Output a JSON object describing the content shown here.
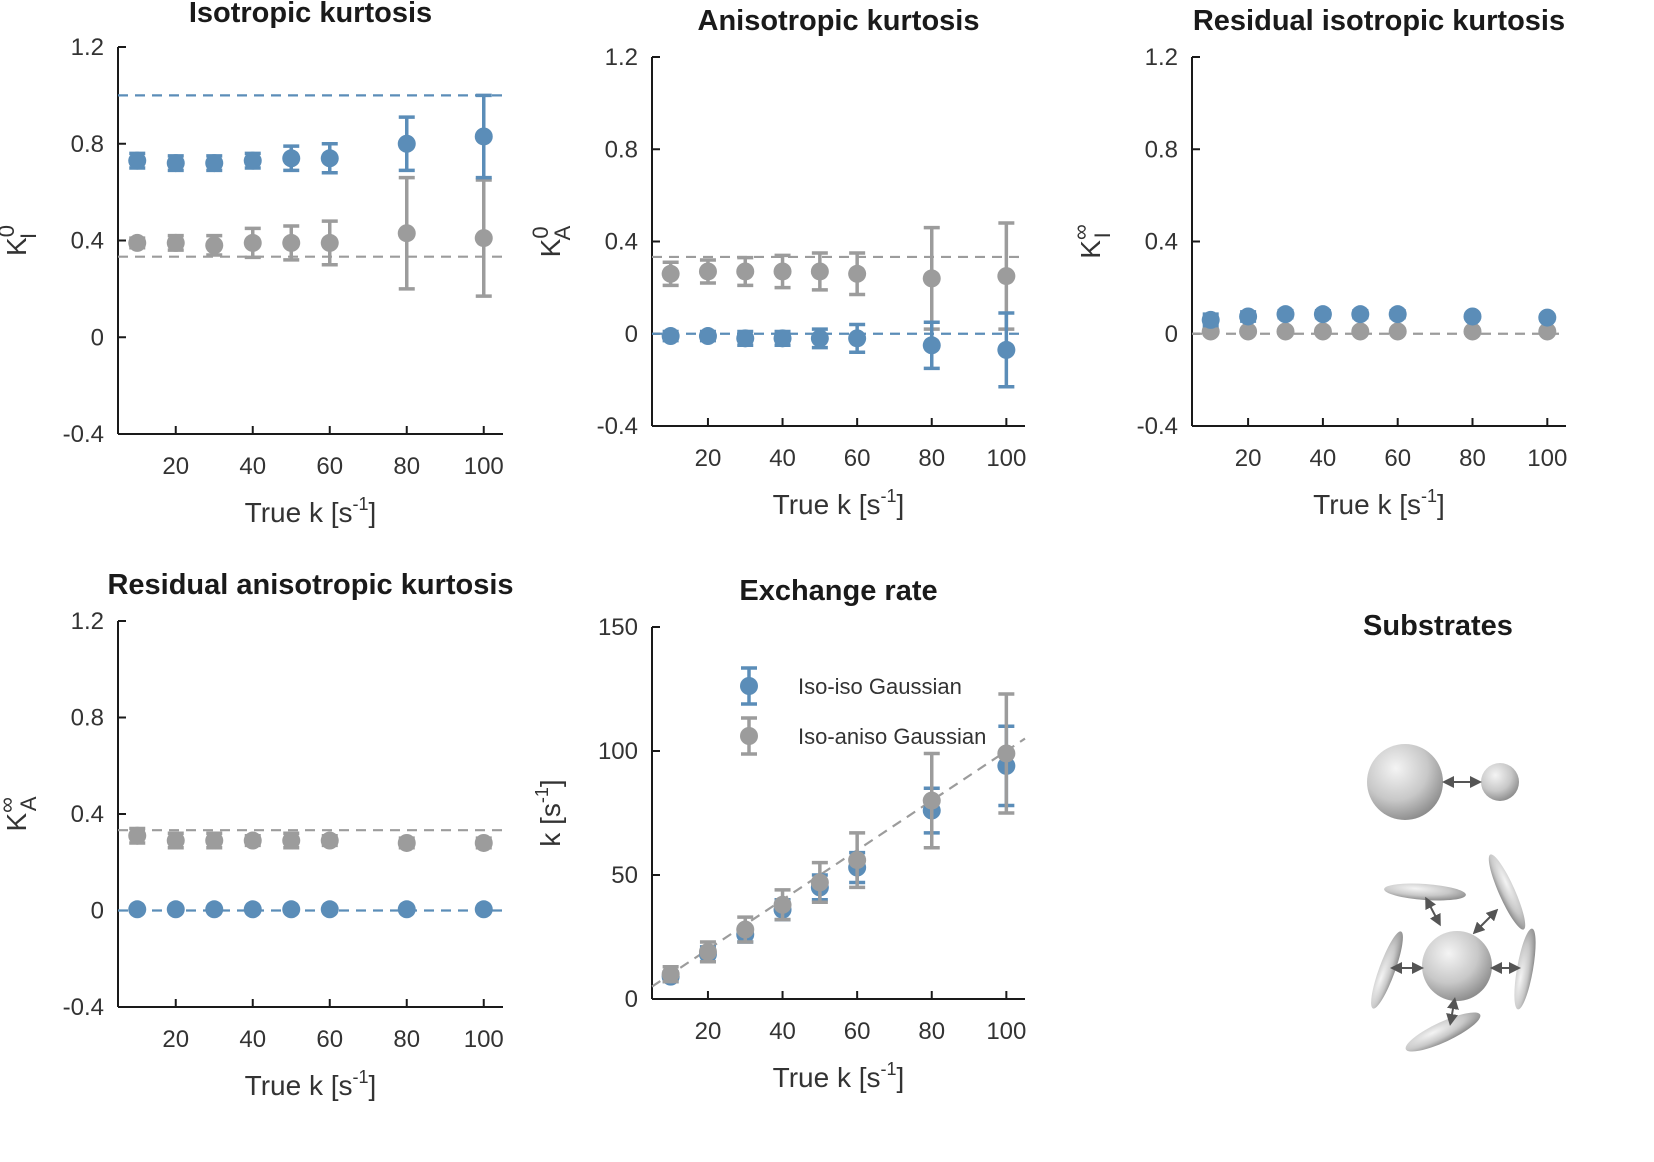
{
  "colors": {
    "blue": "#5b8db8",
    "gray": "#9c9c9c",
    "axis": "#1a1a1a",
    "text": "#333333",
    "ball_fill": "#c4c4c4",
    "ball_stroke": "#9a9a9a"
  },
  "chart_data": [
    {
      "id": "iso",
      "type": "scatter",
      "title": "Isotropic kurtosis",
      "xlabel": "True k [s",
      "xlabel_sup": "-1",
      "xlabel_tail": "]",
      "ylabel": "K",
      "ylabel_sup": "0",
      "ylabel_sub": "I",
      "ylim": [
        -0.4,
        1.2
      ],
      "xlim": [
        5,
        105
      ],
      "yticks": [
        "1.2",
        "0.8",
        "0.4",
        "0",
        "-0.4"
      ],
      "xticks": [
        "20",
        "40",
        "60",
        "80",
        "100"
      ],
      "references": [
        {
          "series": "Iso-iso Gaussian",
          "y": 1.0
        },
        {
          "series": "Iso-aniso Gaussian",
          "y": 0.333
        }
      ],
      "series": [
        {
          "name": "Iso-iso Gaussian",
          "x": [
            10,
            20,
            30,
            40,
            50,
            60,
            80,
            100
          ],
          "values": [
            0.73,
            0.72,
            0.72,
            0.73,
            0.74,
            0.74,
            0.8,
            0.83
          ],
          "err": [
            0.03,
            0.03,
            0.03,
            0.03,
            0.05,
            0.06,
            0.11,
            0.17
          ]
        },
        {
          "name": "Iso-aniso Gaussian",
          "x": [
            10,
            20,
            30,
            40,
            50,
            60,
            80,
            100
          ],
          "values": [
            0.39,
            0.39,
            0.38,
            0.39,
            0.39,
            0.39,
            0.43,
            0.41
          ],
          "err": [
            0.02,
            0.03,
            0.04,
            0.06,
            0.07,
            0.09,
            0.23,
            0.24
          ]
        }
      ]
    },
    {
      "id": "aniso",
      "type": "scatter",
      "title": "Anisotropic kurtosis",
      "xlabel": "True k [s",
      "xlabel_sup": "-1",
      "xlabel_tail": "]",
      "ylabel": "K",
      "ylabel_sup": "0",
      "ylabel_sub": "A",
      "ylim": [
        -0.4,
        1.2
      ],
      "xlim": [
        5,
        105
      ],
      "yticks": [
        "1.2",
        "0.8",
        "0.4",
        "0",
        "-0.4"
      ],
      "xticks": [
        "20",
        "40",
        "60",
        "80",
        "100"
      ],
      "references": [
        {
          "series": "Iso-iso Gaussian",
          "y": 0.0
        },
        {
          "series": "Iso-aniso Gaussian",
          "y": 0.333
        }
      ],
      "series": [
        {
          "name": "Iso-iso Gaussian",
          "x": [
            10,
            20,
            30,
            40,
            50,
            60,
            80,
            100
          ],
          "values": [
            -0.01,
            -0.01,
            -0.02,
            -0.02,
            -0.02,
            -0.02,
            -0.05,
            -0.07
          ],
          "err": [
            0.02,
            0.02,
            0.03,
            0.03,
            0.04,
            0.06,
            0.1,
            0.16
          ]
        },
        {
          "name": "Iso-aniso Gaussian",
          "x": [
            10,
            20,
            30,
            40,
            50,
            60,
            80,
            100
          ],
          "values": [
            0.26,
            0.27,
            0.27,
            0.27,
            0.27,
            0.26,
            0.24,
            0.25
          ],
          "err": [
            0.05,
            0.05,
            0.06,
            0.07,
            0.08,
            0.09,
            0.22,
            0.23
          ]
        }
      ]
    },
    {
      "id": "riso",
      "type": "scatter",
      "title": "Residual isotropic kurtosis",
      "xlabel": "True k [s",
      "xlabel_sup": "-1",
      "xlabel_tail": "]",
      "ylabel": "K",
      "ylabel_sup": "∞",
      "ylabel_sub": "I",
      "ylim": [
        -0.4,
        1.2
      ],
      "xlim": [
        5,
        105
      ],
      "yticks": [
        "1.2",
        "0.8",
        "0.4",
        "0",
        "-0.4"
      ],
      "xticks": [
        "20",
        "40",
        "60",
        "80",
        "100"
      ],
      "references": [
        {
          "series": "Iso-aniso Gaussian",
          "y": 0.0
        }
      ],
      "series": [
        {
          "name": "Iso-iso Gaussian",
          "x": [
            10,
            20,
            30,
            40,
            50,
            60,
            80,
            100
          ],
          "values": [
            0.06,
            0.075,
            0.085,
            0.085,
            0.085,
            0.085,
            0.075,
            0.07
          ],
          "err": [
            0.025,
            0.02,
            0.015,
            0.015,
            0.015,
            0.015,
            0.012,
            0.012
          ]
        },
        {
          "name": "Iso-aniso Gaussian",
          "x": [
            10,
            20,
            30,
            40,
            50,
            60,
            80,
            100
          ],
          "values": [
            0.01,
            0.01,
            0.01,
            0.01,
            0.01,
            0.01,
            0.01,
            0.01
          ],
          "err": [
            0.01,
            0.01,
            0.01,
            0.01,
            0.01,
            0.01,
            0.01,
            0.01
          ]
        }
      ]
    },
    {
      "id": "raniso",
      "type": "scatter",
      "title": "Residual anisotropic kurtosis",
      "xlabel": "True k [s",
      "xlabel_sup": "-1",
      "xlabel_tail": "]",
      "ylabel": "K",
      "ylabel_sup": "∞",
      "ylabel_sub": "A",
      "ylim": [
        -0.4,
        1.2
      ],
      "xlim": [
        5,
        105
      ],
      "yticks": [
        "1.2",
        "0.8",
        "0.4",
        "0",
        "-0.4"
      ],
      "xticks": [
        "20",
        "40",
        "60",
        "80",
        "100"
      ],
      "references": [
        {
          "series": "Iso-iso Gaussian",
          "y": 0.0
        },
        {
          "series": "Iso-aniso Gaussian",
          "y": 0.333
        }
      ],
      "series": [
        {
          "name": "Iso-iso Gaussian",
          "x": [
            10,
            20,
            30,
            40,
            50,
            60,
            80,
            100
          ],
          "values": [
            0.005,
            0.005,
            0.005,
            0.005,
            0.005,
            0.005,
            0.005,
            0.005
          ],
          "err": [
            0.005,
            0.005,
            0.005,
            0.005,
            0.005,
            0.005,
            0.005,
            0.005
          ]
        },
        {
          "name": "Iso-aniso Gaussian",
          "x": [
            10,
            20,
            30,
            40,
            50,
            60,
            80,
            100
          ],
          "values": [
            0.31,
            0.29,
            0.29,
            0.29,
            0.29,
            0.29,
            0.28,
            0.28
          ],
          "err": [
            0.03,
            0.03,
            0.03,
            0.02,
            0.03,
            0.02,
            0.02,
            0.02
          ]
        }
      ]
    },
    {
      "id": "rate",
      "type": "scatter",
      "title": "Exchange rate",
      "xlabel": "True k [s",
      "xlabel_sup": "-1",
      "xlabel_tail": "]",
      "ylabel": "k [s",
      "ylabel_sup": "-1",
      "ylabel_tail": "]",
      "ylim": [
        0,
        150
      ],
      "xlim": [
        5,
        105
      ],
      "yticks": [
        "150",
        "100",
        "50",
        "0"
      ],
      "xticks": [
        "20",
        "40",
        "60",
        "80",
        "100"
      ],
      "identity_line": true,
      "legend": [
        "Iso-iso Gaussian",
        "Iso-aniso Gaussian"
      ],
      "series": [
        {
          "name": "Iso-iso Gaussian",
          "x": [
            10,
            20,
            30,
            40,
            50,
            60,
            80,
            100
          ],
          "values": [
            9,
            18,
            26,
            36,
            45,
            53,
            76,
            94
          ],
          "err": [
            2,
            3,
            3,
            4,
            5,
            6,
            9,
            16
          ]
        },
        {
          "name": "Iso-aniso Gaussian",
          "x": [
            10,
            20,
            30,
            40,
            50,
            60,
            80,
            100
          ],
          "values": [
            10,
            19,
            28,
            38,
            47,
            56,
            80,
            99
          ],
          "err": [
            3,
            4,
            5,
            6,
            8,
            11,
            19,
            24
          ]
        }
      ]
    }
  ],
  "substrates": {
    "title": "Substrates"
  }
}
